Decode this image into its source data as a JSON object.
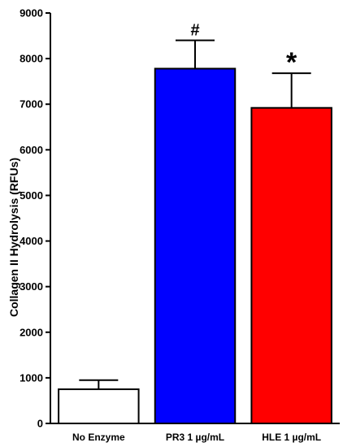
{
  "chart_data": {
    "type": "bar",
    "title": "",
    "xlabel": "",
    "ylabel": "Collagen  II Hydrolysis  (RFUs)",
    "ylim": [
      0,
      9000
    ],
    "yticks": [
      0,
      1000,
      2000,
      3000,
      4000,
      5000,
      6000,
      7000,
      8000,
      9000
    ],
    "categories": [
      "No Enzyme",
      "PR3 1 µg/mL",
      "HLE 1 µg/mL"
    ],
    "values": [
      750,
      7780,
      6920
    ],
    "errors": [
      200,
      620,
      760
    ],
    "colors": [
      "#ffffff",
      "#0000ff",
      "#ff0000"
    ],
    "significance": [
      "",
      "#",
      "*"
    ],
    "grid": false,
    "legend": "none"
  }
}
